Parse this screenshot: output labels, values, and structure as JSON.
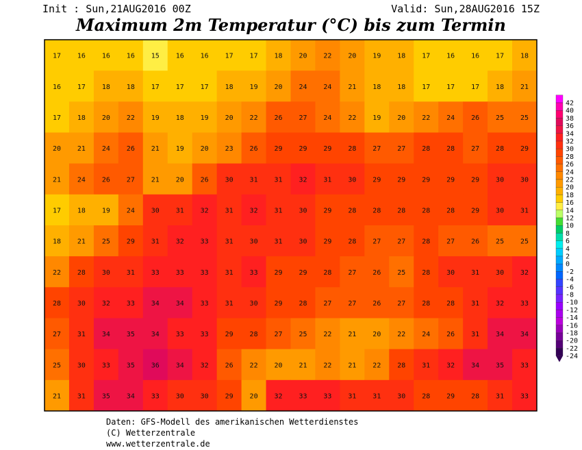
{
  "header": {
    "init": "Init : Sun,21AUG2016 00Z",
    "valid": "Valid: Sun,28AUG2016 15Z",
    "title": "Maximum 2m Temperatur (°C) bis zum Termin"
  },
  "footer": {
    "line1": "Daten: GFS-Modell des amerikanischen Wetterdienstes",
    "line2": "(C) Wetterzentrale",
    "line3": "www.wetterzentrale.de"
  },
  "colorbar": {
    "levels": [
      42,
      40,
      38,
      36,
      34,
      32,
      30,
      28,
      26,
      24,
      22,
      20,
      18,
      16,
      14,
      12,
      10,
      8,
      6,
      4,
      2,
      0,
      -2,
      -4,
      -6,
      -8,
      -10,
      -12,
      -14,
      -16,
      -18,
      -20,
      -22,
      -24
    ],
    "colors": [
      "#ff00ff",
      "#ff00b0",
      "#ff0070",
      "#e00a5a",
      "#ee1444",
      "#ff2020",
      "#ff3010",
      "#ff4400",
      "#ff5a00",
      "#ff7000",
      "#ff8800",
      "#ff9a00",
      "#ffb000",
      "#ffcc00",
      "#ffee44",
      "#bbff66",
      "#44dd33",
      "#00cc66",
      "#00ddaa",
      "#00eeee",
      "#00ccff",
      "#00aaff",
      "#0088ff",
      "#0066ff",
      "#3344ff",
      "#5533ff",
      "#7722ff",
      "#9900ff",
      "#aa00ee",
      "#bb00dd",
      "#9900bb",
      "#770099",
      "#550077",
      "#330055"
    ]
  },
  "map": {
    "grid": [
      [
        17,
        16,
        16,
        16,
        15,
        16,
        16,
        17,
        17,
        18,
        20,
        22,
        20,
        19,
        18,
        17,
        16,
        16,
        17,
        18
      ],
      [
        16,
        17,
        18,
        18,
        17,
        17,
        17,
        18,
        19,
        20,
        24,
        24,
        21,
        18,
        18,
        17,
        17,
        17,
        18,
        21
      ],
      [
        17,
        18,
        20,
        22,
        19,
        18,
        19,
        20,
        22,
        26,
        27,
        24,
        22,
        19,
        20,
        22,
        24,
        26,
        25,
        25
      ],
      [
        20,
        21,
        24,
        26,
        21,
        19,
        20,
        23,
        26,
        29,
        29,
        29,
        28,
        27,
        27,
        28,
        28,
        27,
        28,
        29
      ],
      [
        21,
        24,
        26,
        27,
        21,
        20,
        26,
        30,
        31,
        31,
        32,
        31,
        30,
        29,
        29,
        29,
        29,
        29,
        30,
        30
      ],
      [
        17,
        18,
        19,
        24,
        30,
        31,
        32,
        31,
        32,
        31,
        30,
        29,
        28,
        28,
        28,
        28,
        28,
        29,
        30,
        31
      ],
      [
        18,
        21,
        25,
        29,
        31,
        32,
        33,
        31,
        30,
        31,
        30,
        29,
        28,
        27,
        27,
        28,
        27,
        26,
        25,
        25
      ],
      [
        22,
        28,
        30,
        31,
        33,
        33,
        33,
        31,
        33,
        29,
        29,
        28,
        27,
        26,
        25,
        28,
        30,
        31,
        30,
        32
      ],
      [
        28,
        30,
        32,
        33,
        34,
        34,
        33,
        31,
        30,
        29,
        28,
        27,
        27,
        26,
        27,
        28,
        28,
        31,
        32,
        33
      ],
      [
        27,
        31,
        34,
        35,
        34,
        33,
        33,
        29,
        28,
        27,
        25,
        22,
        21,
        20,
        22,
        24,
        26,
        31,
        34,
        34
      ],
      [
        25,
        30,
        33,
        35,
        36,
        34,
        32,
        26,
        22,
        20,
        21,
        22,
        21,
        22,
        28,
        31,
        32,
        34,
        35,
        33
      ],
      [
        21,
        31,
        35,
        34,
        33,
        30,
        30,
        29,
        20,
        32,
        33,
        33,
        31,
        31,
        30,
        28,
        29,
        28,
        31,
        33
      ]
    ]
  }
}
